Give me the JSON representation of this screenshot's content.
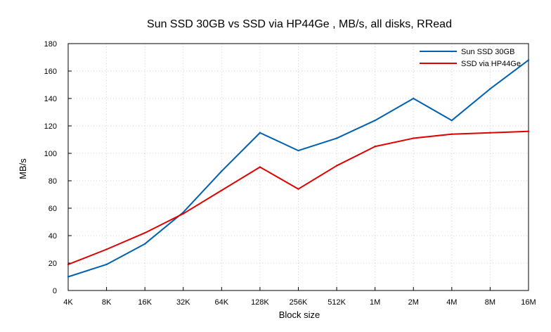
{
  "chart_data": {
    "type": "line",
    "title": "Sun SSD 30GB vs SSD via HP44Ge , MB/s, all disks, RRead",
    "xlabel": "Block size",
    "ylabel": "MB/s",
    "categories": [
      "4K",
      "8K",
      "16K",
      "32K",
      "64K",
      "128K",
      "256K",
      "512K",
      "1M",
      "2M",
      "4M",
      "8M",
      "16M"
    ],
    "ylim": [
      0,
      180
    ],
    "yticks": [
      0,
      20,
      40,
      60,
      80,
      100,
      120,
      140,
      160,
      180
    ],
    "grid": true,
    "legend_position": "top-right",
    "series": [
      {
        "name": "Sun SSD 30GB",
        "color": "#0060b0",
        "values": [
          10,
          19,
          34,
          57,
          87,
          115,
          102,
          111,
          124,
          140,
          124,
          147,
          168
        ]
      },
      {
        "name": "SSD via HP44Ge",
        "color": "#e00000",
        "values": [
          19,
          30,
          42,
          56,
          73,
          90,
          74,
          91,
          105,
          111,
          114,
          115,
          116
        ]
      }
    ]
  }
}
